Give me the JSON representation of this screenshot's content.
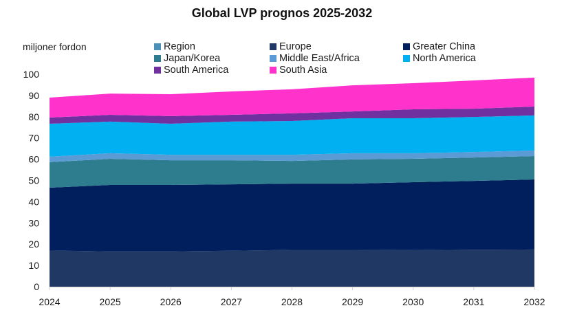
{
  "chart_data": {
    "type": "area",
    "stacked": true,
    "title": "Global LVP prognos 2025-2032",
    "ylabel": "miljoner fordon",
    "xlabel": "",
    "ylim": [
      0,
      100
    ],
    "y_ticks": [
      "0",
      "10",
      "20",
      "30",
      "40",
      "50",
      "60",
      "70",
      "80",
      "90",
      "100"
    ],
    "x": [
      "2024",
      "2025",
      "2026",
      "2027",
      "2028",
      "2029",
      "2030",
      "2031",
      "2032"
    ],
    "grid": false,
    "legend_position": "top",
    "legend": [
      {
        "name": "Region",
        "color": "#4a90b8"
      },
      {
        "name": "Europe",
        "color": "#203864"
      },
      {
        "name": "Greater China",
        "color": "#001f5c"
      },
      {
        "name": "Japan/Korea",
        "color": "#2e7d8f"
      },
      {
        "name": "Middle East/Africa",
        "color": "#5b9bd5"
      },
      {
        "name": "North America",
        "color": "#00b0f0"
      },
      {
        "name": "South America",
        "color": "#7030a0"
      },
      {
        "name": "South Asia",
        "color": "#ff33cc"
      }
    ],
    "series": [
      {
        "name": "Europe",
        "color": "#203864",
        "values": [
          17.0,
          16.6,
          16.6,
          16.9,
          17.3,
          17.3,
          17.2,
          17.4,
          17.5
        ]
      },
      {
        "name": "Greater China",
        "color": "#001f5c",
        "values": [
          29.6,
          31.3,
          31.3,
          31.3,
          31.2,
          31.2,
          32.0,
          32.4,
          33.0
        ]
      },
      {
        "name": "Japan/Korea",
        "color": "#2e7d8f",
        "values": [
          12.0,
          12.3,
          11.6,
          11.3,
          10.7,
          11.4,
          11.0,
          11.0,
          11.0
        ]
      },
      {
        "name": "Middle East/Africa",
        "color": "#5b9bd5",
        "values": [
          2.6,
          2.6,
          2.6,
          2.6,
          2.9,
          2.9,
          2.6,
          2.6,
          2.6
        ]
      },
      {
        "name": "North America",
        "color": "#00b0f0",
        "values": [
          15.5,
          14.9,
          14.6,
          15.6,
          15.9,
          16.5,
          16.5,
          16.5,
          16.5
        ]
      },
      {
        "name": "South America",
        "color": "#7030a0",
        "values": [
          2.9,
          3.2,
          3.6,
          3.2,
          3.6,
          3.2,
          4.2,
          3.9,
          4.2
        ]
      },
      {
        "name": "South Asia",
        "color": "#ff33cc",
        "values": [
          9.4,
          10.0,
          10.3,
          11.0,
          11.3,
          12.3,
          12.3,
          13.3,
          13.6
        ]
      }
    ]
  }
}
